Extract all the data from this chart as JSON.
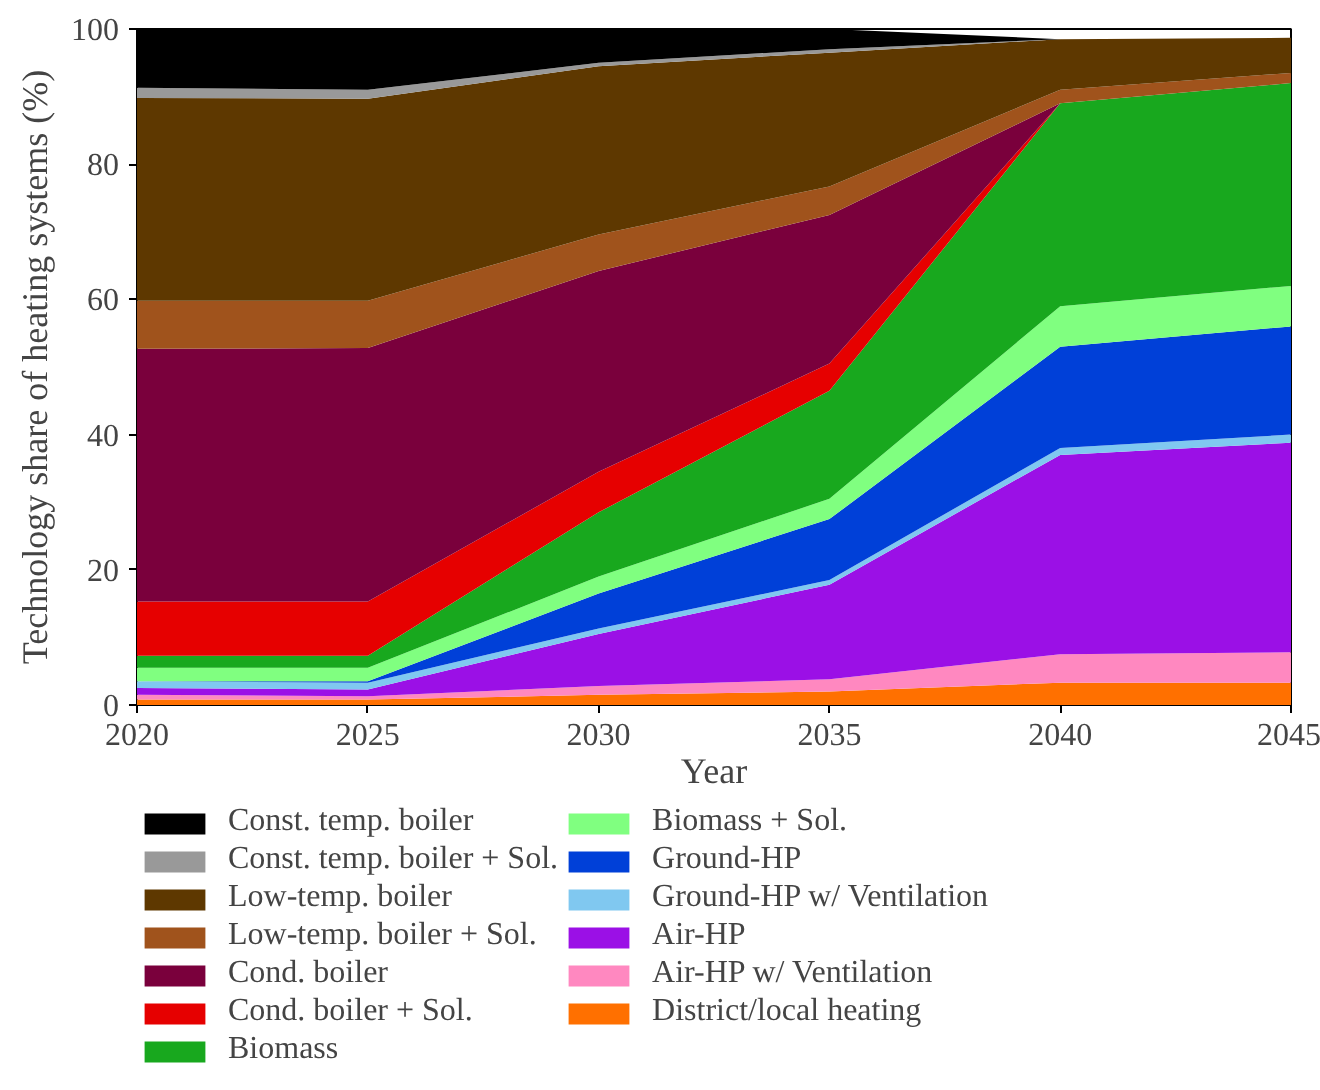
{
  "chart_data": {
    "type": "area",
    "stacked": true,
    "xlabel": "Year",
    "ylabel": "Technology share of heating systems (%)",
    "x": [
      2020,
      2025,
      2030,
      2035,
      2040,
      2045
    ],
    "xlim": [
      2020,
      2045
    ],
    "xticks": [
      2020,
      2025,
      2030,
      2035,
      2040,
      2045
    ],
    "ylim": [
      0,
      100
    ],
    "yticks": [
      0,
      20,
      40,
      60,
      80,
      100
    ],
    "grid": false,
    "legend": "bottom",
    "series": [
      {
        "name": "District/local heating",
        "color": "#ff7000",
        "values": [
          0.8,
          0.8,
          1.5,
          2.0,
          3.3,
          3.3
        ]
      },
      {
        "name": "Air-HP w/ Ventilation",
        "color": "#ff88c0",
        "values": [
          0.7,
          0.5,
          1.3,
          1.8,
          4.2,
          4.5
        ]
      },
      {
        "name": "Air-HP",
        "color": "#9b10e6",
        "values": [
          1.0,
          1.0,
          7.7,
          14.0,
          29.5,
          31.0
        ]
      },
      {
        "name": "Ground-HP w/ Ventilation",
        "color": "#80c8f0",
        "values": [
          1.0,
          1.0,
          0.8,
          0.7,
          1.0,
          1.2
        ]
      },
      {
        "name": "Ground-HP",
        "color": "#0040d8",
        "values": [
          0,
          0.2,
          5.2,
          9.0,
          15.0,
          16.0
        ]
      },
      {
        "name": "Biomass + Sol.",
        "color": "#80ff80",
        "values": [
          2.0,
          2.0,
          2.5,
          3.0,
          6.0,
          6.0
        ]
      },
      {
        "name": "Biomass",
        "color": "#18a81e",
        "values": [
          1.8,
          1.8,
          9.5,
          16.0,
          30.0,
          30.0
        ]
      },
      {
        "name": "Cond. boiler + Sol.",
        "color": "#e60000",
        "values": [
          8.0,
          8.0,
          6.0,
          4.0,
          0,
          0
        ]
      },
      {
        "name": "Cond. boiler",
        "color": "#7a003c",
        "values": [
          37.4,
          37.5,
          29.7,
          22.0,
          0,
          0
        ]
      },
      {
        "name": "Low-temp. boiler + Sol.",
        "color": "#a0531c",
        "values": [
          7.1,
          7.0,
          5.4,
          4.2,
          2.0,
          1.5
        ]
      },
      {
        "name": "Low-temp. boiler",
        "color": "#5e3800",
        "values": [
          30.0,
          29.9,
          24.9,
          19.8,
          7.5,
          5.2
        ]
      },
      {
        "name": "Const. temp. boiler + Sol.",
        "color": "#999999",
        "values": [
          1.5,
          1.3,
          0.5,
          0.5,
          0,
          0
        ]
      },
      {
        "name": "Const. temp. boiler",
        "color": "#000000",
        "values": [
          8.7,
          9.0,
          5.0,
          3.0,
          0,
          0
        ]
      }
    ]
  }
}
